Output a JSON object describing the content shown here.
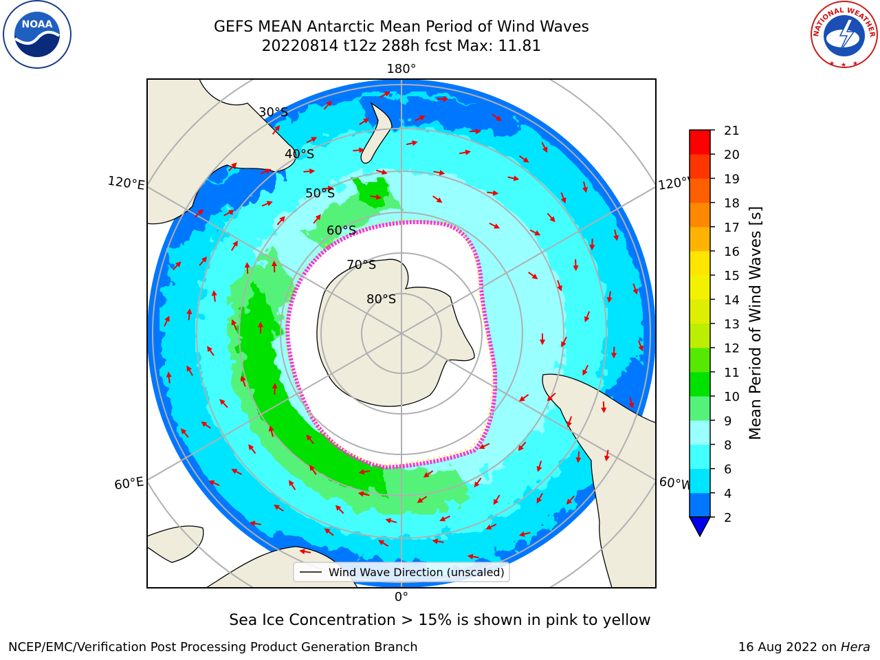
{
  "header": {
    "title_line1": "GEFS MEAN Antarctic Mean Period of Wind Waves",
    "title_line2": "20220814 t12z 288h fcst   Max: 11.81"
  },
  "logos": {
    "noaa_text": "NOAA",
    "nws_text": "NATIONAL WEATHER SERVICE"
  },
  "map": {
    "lon_labels": {
      "top": "180°",
      "bottom": "0°",
      "left_upper": "120°E",
      "left_lower": "60°E",
      "right_upper": "120°W",
      "right_lower": "60°W"
    },
    "lat_labels": [
      "30°S",
      "40°S",
      "50°S",
      "60°S",
      "70°S",
      "80°S"
    ],
    "legend": "Wind Wave Direction (unscaled)",
    "colors": {
      "land": "#efecdc",
      "ice_edge": "#ff33cc",
      "grid": "#b0b0b0",
      "arrow": "#ee0000"
    }
  },
  "colorbar": {
    "label": "Mean Period of Wind Waves [s]",
    "ticks": [
      "2",
      "4",
      "6",
      "8",
      "9",
      "10",
      "11",
      "12",
      "13",
      "14",
      "15",
      "16",
      "17",
      "18",
      "19",
      "20",
      "21"
    ],
    "colors": [
      "#0077ff",
      "#00e5ff",
      "#44ffff",
      "#99ffff",
      "#55f27a",
      "#00e100",
      "#55e800",
      "#bbee00",
      "#dcef00",
      "#f2f200",
      "#ffe600",
      "#ffb300",
      "#ff8800",
      "#ff5f00",
      "#ff3500",
      "#ff0000"
    ],
    "under_color": "#0000ee"
  },
  "footer": {
    "sea_ice_note": "Sea Ice Concentration > 15% is shown in pink to yellow",
    "left": "NCEP/EMC/Verification Post Processing Product Generation Branch",
    "date": "16 Aug 2022 on ",
    "host": "Hera"
  }
}
